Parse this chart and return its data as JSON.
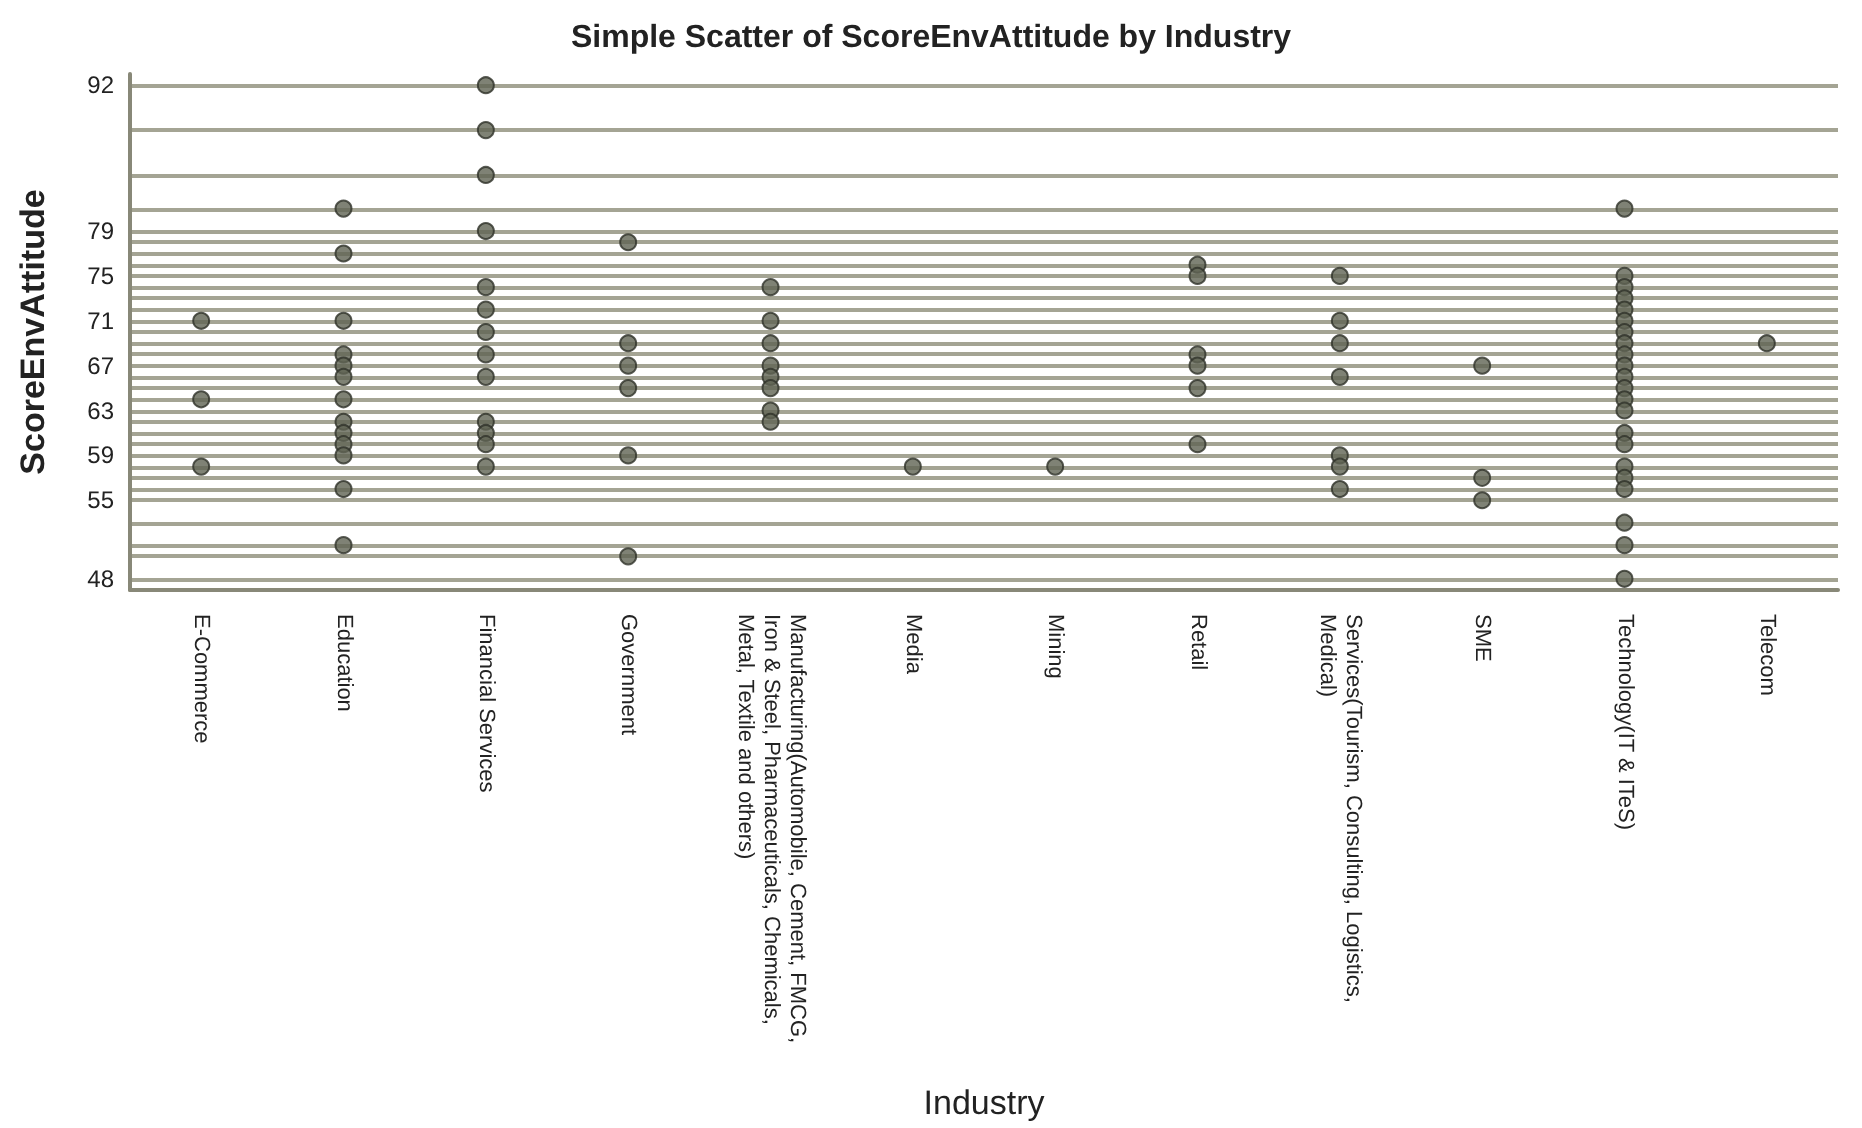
{
  "chart_data": {
    "type": "scatter",
    "title": "Simple Scatter of ScoreEnvAttitude by Industry",
    "xlabel": "Industry",
    "ylabel": "ScoreEnvAttitude",
    "categories": [
      "E-Commerce",
      "Education",
      "Financial Services",
      "Government",
      "Manufacturing(Automobile, Cement, FMCG, Iron & Steel, Pharmaceuticals, Chemicals, Metal, Textile and others)",
      "Media",
      "Mining",
      "Retail",
      "Services(Tourism, Consulting, Logistics, Medical)",
      "SME",
      "Technology(IT & ITeS)",
      "Telecom"
    ],
    "ylim": [
      47,
      93
    ],
    "yticks": [
      48,
      {
        "value": 50,
        "label": null
      },
      {
        "value": 51,
        "label": null
      },
      {
        "value": 53,
        "label": null
      },
      55,
      {
        "value": 56,
        "label": null
      },
      {
        "value": 57,
        "label": null
      },
      {
        "value": 58,
        "label": null
      },
      59,
      {
        "value": 60,
        "label": null
      },
      {
        "value": 61,
        "label": null
      },
      {
        "value": 62,
        "label": null
      },
      63,
      {
        "value": 64,
        "label": null
      },
      {
        "value": 65,
        "label": null
      },
      {
        "value": 66,
        "label": null
      },
      67,
      {
        "value": 68,
        "label": null
      },
      {
        "value": 69,
        "label": null
      },
      {
        "value": 70,
        "label": null
      },
      71,
      {
        "value": 72,
        "label": null
      },
      {
        "value": 73,
        "label": null
      },
      {
        "value": 74,
        "label": null
      },
      75,
      {
        "value": 76,
        "label": null
      },
      {
        "value": 77,
        "label": null
      },
      {
        "value": 78,
        "label": null
      },
      79,
      {
        "value": 81,
        "label": null
      },
      {
        "value": 84,
        "label": null
      },
      {
        "value": 88,
        "label": null
      },
      92
    ],
    "grid": "y",
    "marker": "circle",
    "series": [
      {
        "color": "#5f6352",
        "x": [
          "E-Commerce",
          "E-Commerce",
          "E-Commerce",
          "Education",
          "Education",
          "Education",
          "Education",
          "Education",
          "Education",
          "Education",
          "Education",
          "Education",
          "Education",
          "Education",
          "Education",
          "Education",
          "Financial Services",
          "Financial Services",
          "Financial Services",
          "Financial Services",
          "Financial Services",
          "Financial Services",
          "Financial Services",
          "Financial Services",
          "Financial Services",
          "Financial Services",
          "Financial Services",
          "Financial Services",
          "Financial Services",
          "Government",
          "Government",
          "Government",
          "Government",
          "Government",
          "Government",
          "Manufacturing(Automobile, Cement, FMCG, Iron & Steel, Pharmaceuticals, Chemicals, Metal, Textile and others)",
          "Manufacturing(Automobile, Cement, FMCG, Iron & Steel, Pharmaceuticals, Chemicals, Metal, Textile and others)",
          "Manufacturing(Automobile, Cement, FMCG, Iron & Steel, Pharmaceuticals, Chemicals, Metal, Textile and others)",
          "Manufacturing(Automobile, Cement, FMCG, Iron & Steel, Pharmaceuticals, Chemicals, Metal, Textile and others)",
          "Manufacturing(Automobile, Cement, FMCG, Iron & Steel, Pharmaceuticals, Chemicals, Metal, Textile and others)",
          "Manufacturing(Automobile, Cement, FMCG, Iron & Steel, Pharmaceuticals, Chemicals, Metal, Textile and others)",
          "Manufacturing(Automobile, Cement, FMCG, Iron & Steel, Pharmaceuticals, Chemicals, Metal, Textile and others)",
          "Manufacturing(Automobile, Cement, FMCG, Iron & Steel, Pharmaceuticals, Chemicals, Metal, Textile and others)",
          "Media",
          "Mining",
          "Retail",
          "Retail",
          "Retail",
          "Retail",
          "Retail",
          "Retail",
          "Services(Tourism, Consulting, Logistics, Medical)",
          "Services(Tourism, Consulting, Logistics, Medical)",
          "Services(Tourism, Consulting, Logistics, Medical)",
          "Services(Tourism, Consulting, Logistics, Medical)",
          "Services(Tourism, Consulting, Logistics, Medical)",
          "Services(Tourism, Consulting, Logistics, Medical)",
          "Services(Tourism, Consulting, Logistics, Medical)",
          "SME",
          "SME",
          "SME",
          "Technology(IT & ITeS)",
          "Technology(IT & ITeS)",
          "Technology(IT & ITeS)",
          "Technology(IT & ITeS)",
          "Technology(IT & ITeS)",
          "Technology(IT & ITeS)",
          "Technology(IT & ITeS)",
          "Technology(IT & ITeS)",
          "Technology(IT & ITeS)",
          "Technology(IT & ITeS)",
          "Technology(IT & ITeS)",
          "Technology(IT & ITeS)",
          "Technology(IT & ITeS)",
          "Technology(IT & ITeS)",
          "Technology(IT & ITeS)",
          "Technology(IT & ITeS)",
          "Technology(IT & ITeS)",
          "Technology(IT & ITeS)",
          "Technology(IT & ITeS)",
          "Technology(IT & ITeS)",
          "Technology(IT & ITeS)",
          "Technology(IT & ITeS)",
          "Telecom"
        ],
        "values": [
          71,
          64,
          58,
          81,
          77,
          71,
          68,
          67,
          66,
          64,
          62,
          61,
          60,
          59,
          56,
          51,
          92,
          88,
          84,
          79,
          74,
          72,
          70,
          68,
          66,
          62,
          61,
          60,
          58,
          78,
          69,
          67,
          65,
          59,
          50,
          74,
          71,
          69,
          67,
          66,
          65,
          63,
          62,
          58,
          58,
          76,
          75,
          68,
          67,
          65,
          60,
          75,
          71,
          69,
          66,
          59,
          58,
          56,
          67,
          57,
          55,
          81,
          75,
          74,
          73,
          72,
          71,
          70,
          69,
          68,
          67,
          66,
          65,
          64,
          63,
          61,
          60,
          58,
          57,
          56,
          53,
          51,
          48,
          69
        ]
      }
    ]
  }
}
